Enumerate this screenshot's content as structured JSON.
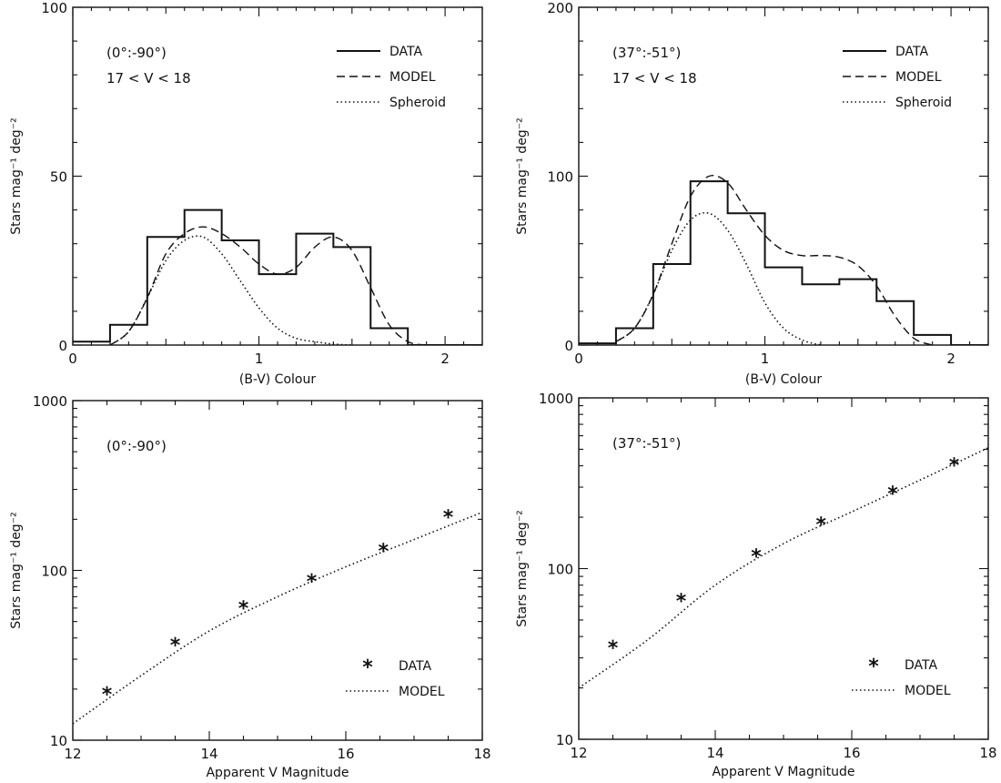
{
  "chart_data": [
    {
      "type": "histogram",
      "annotation": [
        "(0°:-90°)",
        "17 < V < 18"
      ],
      "xlabel": "(B-V) Colour",
      "ylabel": "Stars mag⁻¹ deg⁻²",
      "xlim": [
        0,
        2.2
      ],
      "ylim": [
        0,
        100
      ],
      "xticks": [
        0,
        1,
        2
      ],
      "yticks": [
        0,
        50,
        100
      ],
      "legend": [
        "DATA",
        "MODEL",
        "Spheroid"
      ],
      "legend_position": "top-right",
      "series": [
        {
          "name": "DATA",
          "style": "solid-step",
          "bins": [
            [
              0,
              0.2,
              1
            ],
            [
              0.2,
              0.4,
              6
            ],
            [
              0.4,
              0.6,
              32
            ],
            [
              0.6,
              0.8,
              40
            ],
            [
              0.8,
              1.0,
              31
            ],
            [
              1.0,
              1.2,
              21
            ],
            [
              1.2,
              1.4,
              33
            ],
            [
              1.4,
              1.6,
              29
            ],
            [
              1.6,
              1.8,
              5
            ],
            [
              1.8,
              2.2,
              0
            ]
          ]
        },
        {
          "name": "MODEL",
          "style": "dashed",
          "x": [
            0.2,
            0.3,
            0.4,
            0.5,
            0.6,
            0.7,
            0.8,
            0.9,
            1.0,
            1.1,
            1.2,
            1.3,
            1.4,
            1.5,
            1.6,
            1.7,
            1.8,
            1.9
          ],
          "y": [
            0,
            4,
            14,
            27,
            33,
            35,
            33,
            29,
            24,
            21,
            23,
            29,
            32,
            28,
            17,
            6,
            1,
            0
          ]
        },
        {
          "name": "Spheroid",
          "style": "dotted",
          "x": [
            0.2,
            0.3,
            0.4,
            0.5,
            0.6,
            0.7,
            0.8,
            0.9,
            1.0,
            1.1,
            1.2,
            1.3,
            1.4,
            1.5
          ],
          "y": [
            0,
            4,
            14,
            25,
            31,
            32,
            27,
            19,
            11,
            5,
            2,
            1,
            0.3,
            0
          ]
        }
      ]
    },
    {
      "type": "histogram",
      "annotation": [
        "(37°:-51°)",
        "17 < V < 18"
      ],
      "xlabel": "(B-V) Colour",
      "ylabel": "Stars mag⁻¹ deg⁻²",
      "xlim": [
        0,
        2.2
      ],
      "ylim": [
        0,
        200
      ],
      "xticks": [
        0,
        1,
        2
      ],
      "yticks": [
        0,
        100,
        200
      ],
      "legend": [
        "DATA",
        "MODEL",
        "Spheroid"
      ],
      "legend_position": "top-right",
      "series": [
        {
          "name": "DATA",
          "style": "solid-step",
          "bins": [
            [
              0,
              0.2,
              1
            ],
            [
              0.2,
              0.4,
              10
            ],
            [
              0.4,
              0.6,
              48
            ],
            [
              0.6,
              0.8,
              97
            ],
            [
              0.8,
              1.0,
              78
            ],
            [
              1.0,
              1.2,
              46
            ],
            [
              1.2,
              1.4,
              36
            ],
            [
              1.4,
              1.6,
              39
            ],
            [
              1.6,
              1.8,
              26
            ],
            [
              1.8,
              2.0,
              6
            ],
            [
              2.0,
              2.2,
              0
            ]
          ]
        },
        {
          "name": "MODEL",
          "style": "dashed",
          "x": [
            0.2,
            0.3,
            0.4,
            0.5,
            0.6,
            0.7,
            0.8,
            0.9,
            1.0,
            1.1,
            1.2,
            1.3,
            1.4,
            1.5,
            1.6,
            1.7,
            1.8,
            1.9
          ],
          "y": [
            2,
            10,
            30,
            60,
            88,
            100,
            96,
            80,
            65,
            56,
            53,
            53,
            52,
            47,
            35,
            17,
            4,
            0
          ]
        },
        {
          "name": "Spheroid",
          "style": "dotted",
          "x": [
            0.2,
            0.3,
            0.4,
            0.5,
            0.6,
            0.7,
            0.8,
            0.9,
            1.0,
            1.1,
            1.2,
            1.3
          ],
          "y": [
            2,
            10,
            30,
            56,
            74,
            78,
            68,
            48,
            25,
            10,
            3,
            0
          ]
        }
      ]
    },
    {
      "type": "scatter",
      "scale_y": "log",
      "annotation": [
        "(0°:-90°)"
      ],
      "xlabel": "Apparent V Magnitude",
      "ylabel": "Stars mag⁻¹ deg⁻²",
      "xlim": [
        12,
        18
      ],
      "ylim": [
        10,
        1000
      ],
      "xticks": [
        12,
        14,
        16,
        18
      ],
      "yticks": [
        10,
        100,
        1000
      ],
      "legend": [
        "DATA",
        "MODEL"
      ],
      "legend_position": "bottom-right",
      "series": [
        {
          "name": "DATA",
          "style": "star-markers",
          "x": [
            12.5,
            13.5,
            14.5,
            15.5,
            16.55,
            17.5
          ],
          "y": [
            19,
            37,
            61,
            88,
            133,
            210
          ]
        },
        {
          "name": "MODEL",
          "style": "dotted",
          "x": [
            12,
            13,
            14,
            15,
            16,
            17,
            18
          ],
          "y": [
            12.5,
            24,
            44,
            70,
            105,
            152,
            220
          ]
        }
      ]
    },
    {
      "type": "scatter",
      "scale_y": "log",
      "annotation": [
        "(37°:-51°)"
      ],
      "xlabel": "Apparent V Magnitude",
      "ylabel": "Stars mag⁻¹ deg⁻²",
      "xlim": [
        12,
        18
      ],
      "ylim": [
        10,
        1000
      ],
      "xticks": [
        12,
        14,
        16,
        18
      ],
      "yticks": [
        10,
        100,
        1000
      ],
      "legend": [
        "DATA",
        "MODEL"
      ],
      "legend_position": "bottom-right",
      "series": [
        {
          "name": "DATA",
          "style": "star-markers",
          "x": [
            12.5,
            13.5,
            14.6,
            15.55,
            16.6,
            17.5
          ],
          "y": [
            35,
            66,
            120,
            185,
            280,
            410
          ]
        },
        {
          "name": "MODEL",
          "style": "dotted",
          "x": [
            12,
            13,
            14,
            15,
            16,
            17,
            18
          ],
          "y": [
            20,
            38,
            80,
            140,
            215,
            330,
            510
          ]
        }
      ]
    }
  ]
}
